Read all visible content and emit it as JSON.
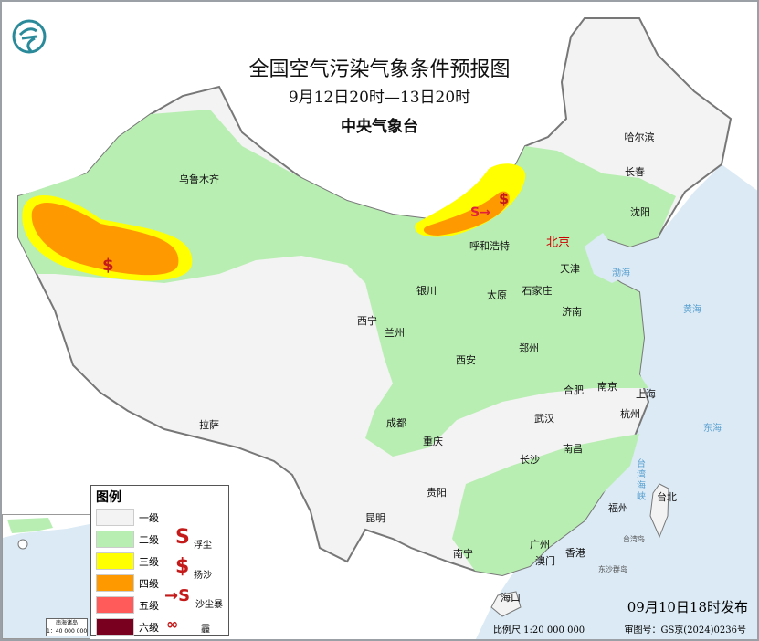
{
  "header": {
    "title": "全国空气污染气象条件预报图",
    "period": "9月12日20时—13日20时",
    "agency": "中央气象台"
  },
  "colors": {
    "sea": "#dbeaf5",
    "level1": "#f3f3f3",
    "level2": "#b9eeb3",
    "level3": "#ffff00",
    "level4": "#ff9900",
    "level5": "#ff5b5b",
    "level6": "#7a0020",
    "symbol": "#c41a1a",
    "logo": "#2b8a9a"
  },
  "logo": {
    "icon": "cma-dragon-logo"
  },
  "cities": [
    "乌鲁木齐",
    "哈尔滨",
    "长春",
    "沈阳",
    "北京",
    "天津",
    "呼和浩特",
    "银川",
    "太原",
    "石家庄",
    "济南",
    "西宁",
    "兰州",
    "郑州",
    "西安",
    "合肥",
    "南京",
    "上海",
    "杭州",
    "武汉",
    "拉萨",
    "成都",
    "重庆",
    "南昌",
    "长沙",
    "贵阳",
    "福州",
    "台北",
    "昆明",
    "广州",
    "澳门",
    "香港",
    "南宁",
    "海口"
  ],
  "seas": {
    "bohai": "渤海",
    "huanghai": "黄海",
    "donghai": "东海",
    "taiwan_strait": "台湾海峡",
    "taiwan_island": "台湾岛",
    "dongsha": "东沙群岛"
  },
  "legend": {
    "title": "图例",
    "levels": [
      "一级",
      "二级",
      "三级",
      "四级",
      "五级",
      "六级"
    ],
    "symbols": [
      {
        "name": "浮尘",
        "icon": "floating-dust-icon"
      },
      {
        "name": "扬沙",
        "icon": "blowing-sand-icon"
      },
      {
        "name": "沙尘暴",
        "icon": "sandstorm-icon"
      },
      {
        "name": "霾",
        "icon": "haze-icon"
      }
    ]
  },
  "inset": {
    "title": "南海诸岛",
    "scale": "1：40 000 000"
  },
  "footer": {
    "issued": "09月10日18时发布",
    "scale": "比例尺 1:20 000 000",
    "review_no": "审图号：GS京(2024)0236号"
  }
}
